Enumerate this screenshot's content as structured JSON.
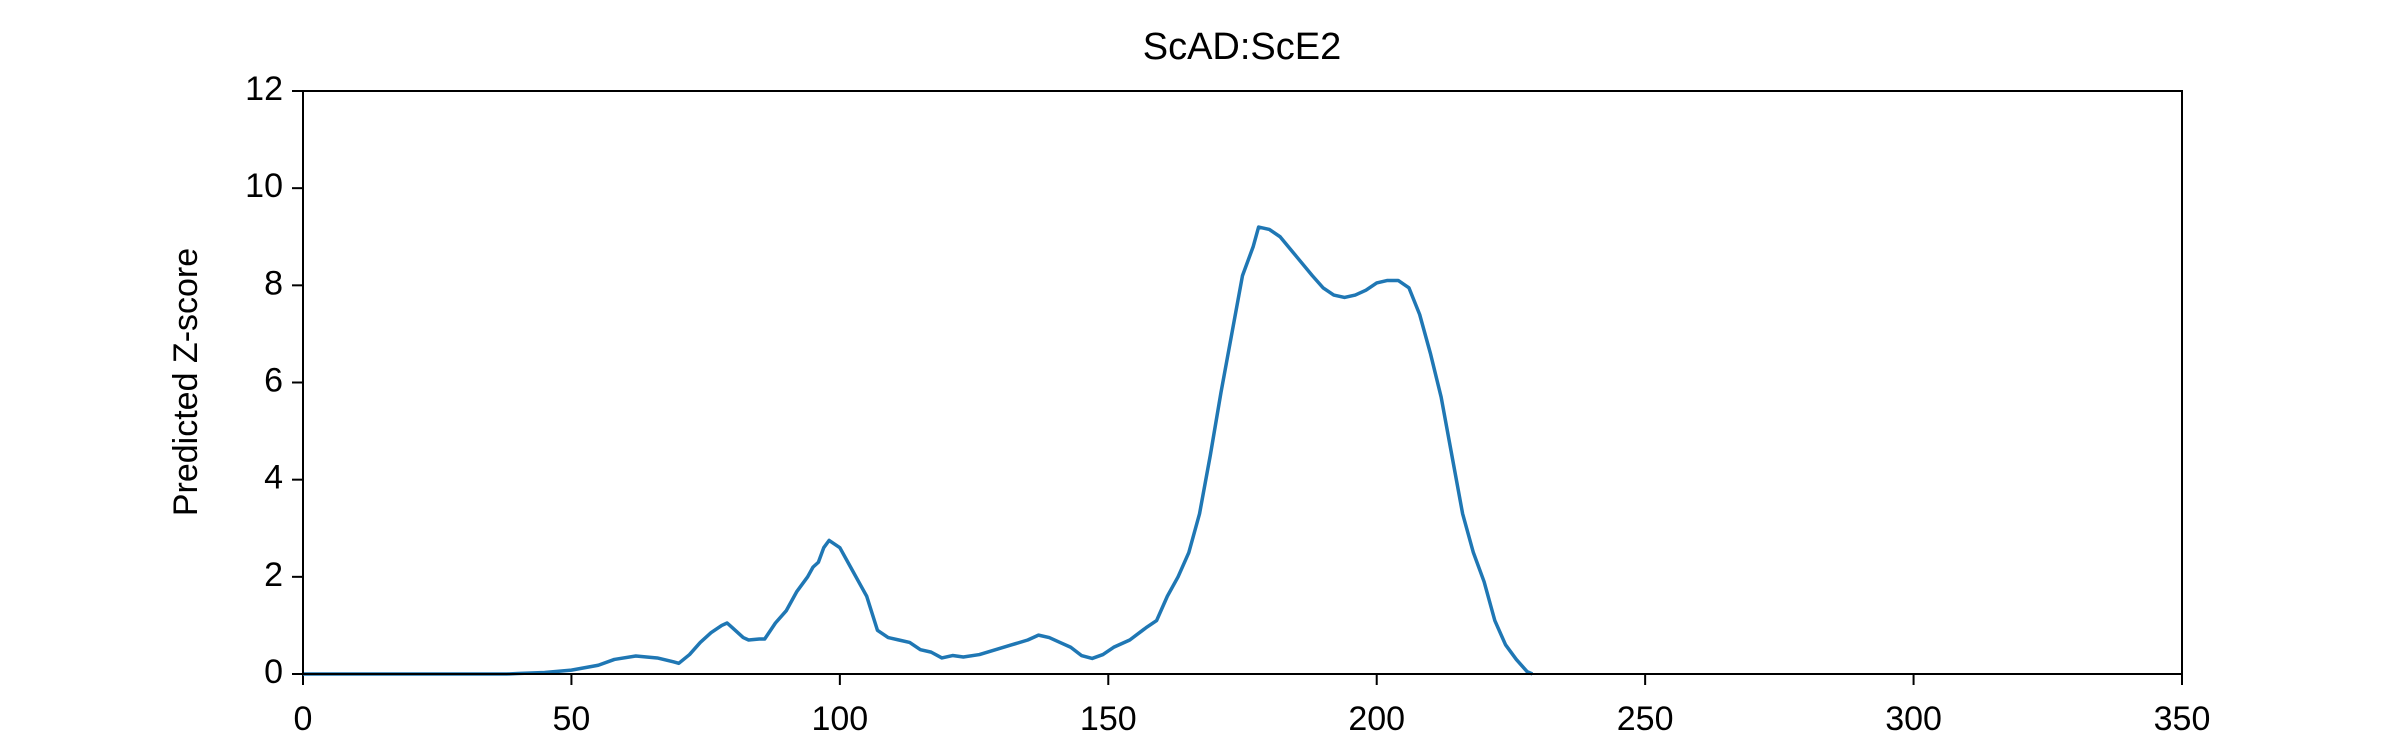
{
  "chart_data": {
    "type": "line",
    "title": "ScAD:ScE2",
    "ylabel": "Predicted Z-score",
    "x": [
      0,
      38,
      40,
      45,
      50,
      55,
      58,
      62,
      66,
      69,
      70,
      72,
      74,
      76,
      78,
      79,
      80,
      82,
      83,
      85,
      86,
      88,
      90,
      92,
      94,
      95,
      96,
      97,
      98,
      100,
      102,
      104,
      105,
      107,
      109,
      111,
      113,
      115,
      117,
      119,
      121,
      123,
      126,
      129,
      132,
      135,
      137,
      139,
      141,
      143,
      145,
      147,
      149,
      151,
      154,
      157,
      159,
      161,
      163,
      165,
      167,
      169,
      171,
      173,
      175,
      177,
      178,
      180,
      182,
      185,
      188,
      190,
      192,
      194,
      196,
      198,
      200,
      202,
      204,
      206,
      208,
      210,
      212,
      214,
      216,
      218,
      220,
      222,
      224,
      226,
      228,
      229
    ],
    "series": [
      {
        "color": "#1f77b4",
        "values": [
          0,
          0,
          0.01,
          0.03,
          0.08,
          0.18,
          0.3,
          0.37,
          0.33,
          0.25,
          0.22,
          0.4,
          0.65,
          0.85,
          1.0,
          1.05,
          0.95,
          0.75,
          0.7,
          0.72,
          0.72,
          1.05,
          1.3,
          1.7,
          2.0,
          2.2,
          2.3,
          2.6,
          2.75,
          2.6,
          2.2,
          1.8,
          1.6,
          0.9,
          0.75,
          0.7,
          0.65,
          0.5,
          0.45,
          0.33,
          0.38,
          0.35,
          0.4,
          0.5,
          0.6,
          0.7,
          0.8,
          0.75,
          0.65,
          0.55,
          0.38,
          0.32,
          0.4,
          0.55,
          0.7,
          0.95,
          1.1,
          1.6,
          2.0,
          2.5,
          3.3,
          4.5,
          5.8,
          7.0,
          8.2,
          8.8,
          9.2,
          9.15,
          9.0,
          8.6,
          8.2,
          7.95,
          7.8,
          7.75,
          7.8,
          7.9,
          8.05,
          8.1,
          8.1,
          7.95,
          7.4,
          6.6,
          5.7,
          4.5,
          3.3,
          2.5,
          1.9,
          1.1,
          0.6,
          0.3,
          0.05,
          0
        ]
      }
    ],
    "xlim": [
      0,
      350
    ],
    "xticks": [
      0,
      50,
      100,
      150,
      200,
      250,
      300,
      350
    ],
    "ylim": [
      0,
      12
    ],
    "yticks": [
      0,
      2,
      4,
      6,
      8,
      10,
      12
    ],
    "grid": false
  }
}
